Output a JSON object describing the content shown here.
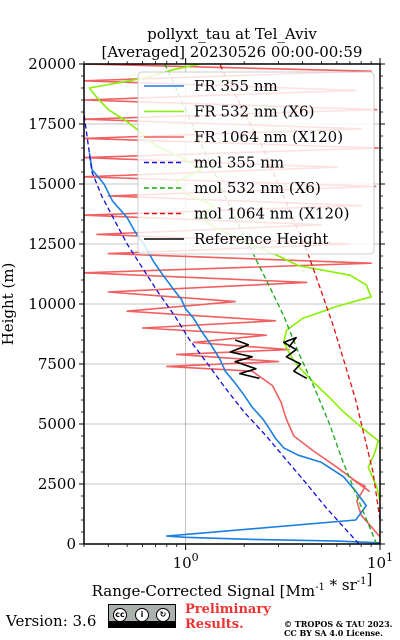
{
  "chart_data": {
    "type": "line",
    "title_line1": "pollyxt_tau at Tel_Aviv",
    "title_line2": "[Averaged] 20230526 00:00-00:59",
    "xlabel": "Range-Corrected Signal [Mm^-1 * sr^-1]",
    "ylabel": "Height (m)",
    "xscale": "log",
    "xlim": [
      0.3,
      10
    ],
    "ylim": [
      0,
      20000
    ],
    "x_ticks": [
      {
        "value": 1,
        "label": "10^0"
      },
      {
        "value": 10,
        "label": "10^1"
      }
    ],
    "y_ticks": [
      0,
      2500,
      5000,
      7500,
      10000,
      12500,
      15000,
      17500,
      20000
    ],
    "grid": true,
    "legend_position": "top-right",
    "series": [
      {
        "name": "FR 355 nm",
        "color": "#1a7fe0",
        "style": "solid",
        "points": [
          [
            10,
            50
          ],
          [
            6,
            120
          ],
          [
            2,
            200
          ],
          [
            1,
            280
          ],
          [
            0.8,
            330
          ],
          [
            7.5,
            1000
          ],
          [
            8.5,
            1600
          ],
          [
            7.5,
            2200
          ],
          [
            6.5,
            2800
          ],
          [
            5,
            3400
          ],
          [
            3.8,
            3700
          ],
          [
            3.2,
            4000
          ],
          [
            2.9,
            4400
          ],
          [
            2.7,
            4800
          ],
          [
            2.5,
            5200
          ],
          [
            2.2,
            5700
          ],
          [
            2.0,
            6200
          ],
          [
            1.8,
            6700
          ],
          [
            1.6,
            7200
          ],
          [
            1.5,
            7700
          ],
          [
            1.35,
            8300
          ],
          [
            1.2,
            8900
          ],
          [
            1.1,
            9400
          ],
          [
            1.0,
            9800
          ],
          [
            0.95,
            10200
          ],
          [
            0.85,
            10700
          ],
          [
            0.75,
            11300
          ],
          [
            0.68,
            11800
          ],
          [
            0.62,
            12400
          ],
          [
            0.55,
            13000
          ],
          [
            0.5,
            13600
          ],
          [
            0.42,
            14300
          ],
          [
            0.38,
            15000
          ],
          [
            0.33,
            15600
          ],
          [
            0.32,
            16300
          ]
        ]
      },
      {
        "name": "FR 532 nm (X6)",
        "color": "#88f000",
        "style": "solid",
        "points": [
          [
            10,
            1800
          ],
          [
            9.6,
            2400
          ],
          [
            8.7,
            3200
          ],
          [
            9.4,
            3800
          ],
          [
            9.8,
            4300
          ],
          [
            8.2,
            4800
          ],
          [
            6.5,
            5500
          ],
          [
            5.5,
            6100
          ],
          [
            4.6,
            6700
          ],
          [
            3.9,
            7300
          ],
          [
            3.5,
            7800
          ],
          [
            3.2,
            8400
          ],
          [
            3.3,
            8900
          ],
          [
            4.0,
            9400
          ],
          [
            6.0,
            9900
          ],
          [
            9.0,
            10300
          ],
          [
            8.5,
            10800
          ],
          [
            7.0,
            11200
          ],
          [
            3.8,
            11600
          ],
          [
            3.0,
            12000
          ],
          [
            2.3,
            12400
          ],
          [
            1.8,
            12800
          ],
          [
            1.4,
            13200
          ],
          [
            1.2,
            13600
          ],
          [
            1.4,
            14100
          ],
          [
            1.0,
            14600
          ],
          [
            0.9,
            15100
          ],
          [
            1.2,
            15600
          ],
          [
            0.95,
            16100
          ],
          [
            0.7,
            16600
          ],
          [
            0.6,
            17100
          ],
          [
            0.5,
            17600
          ],
          [
            0.4,
            18100
          ],
          [
            0.35,
            18600
          ],
          [
            0.32,
            19000
          ],
          [
            0.6,
            19400
          ],
          [
            0.9,
            19800
          ],
          [
            1.2,
            20000
          ]
        ]
      },
      {
        "name": "FR 1064 nm (X120)",
        "color": "#f06060",
        "style": "solid",
        "points": [
          [
            10,
            300
          ],
          [
            8.0,
            1200
          ],
          [
            7.6,
            1800
          ],
          [
            8.4,
            2400
          ],
          [
            7.2,
            2700
          ],
          [
            8.8,
            2200
          ],
          [
            6.0,
            3200
          ],
          [
            4.5,
            3900
          ],
          [
            3.6,
            4500
          ],
          [
            3.3,
            5200
          ],
          [
            3.1,
            5900
          ],
          [
            2.8,
            6600
          ],
          [
            2.2,
            7200
          ],
          [
            0.8,
            7400
          ],
          [
            3.0,
            7600
          ],
          [
            0.9,
            7900
          ],
          [
            3.4,
            8100
          ],
          [
            1.1,
            8400
          ],
          [
            2.6,
            8700
          ],
          [
            0.6,
            9000
          ],
          [
            2.9,
            9300
          ],
          [
            0.5,
            9700
          ],
          [
            1.8,
            10100
          ],
          [
            0.4,
            10500
          ],
          [
            4.2,
            10900
          ],
          [
            0.3,
            11300
          ],
          [
            9.0,
            11700
          ],
          [
            0.4,
            12100
          ],
          [
            7.0,
            12500
          ],
          [
            0.35,
            12900
          ],
          [
            5.0,
            13300
          ],
          [
            0.3,
            13700
          ],
          [
            8.0,
            14100
          ],
          [
            0.4,
            14500
          ],
          [
            9.5,
            14900
          ],
          [
            0.3,
            15300
          ],
          [
            6.0,
            15700
          ],
          [
            0.3,
            16100
          ],
          [
            9.8,
            16500
          ],
          [
            0.3,
            16900
          ],
          [
            8.0,
            17300
          ],
          [
            0.3,
            17700
          ],
          [
            9.6,
            18100
          ],
          [
            0.3,
            18500
          ],
          [
            7.5,
            18900
          ],
          [
            0.3,
            19300
          ],
          [
            9.0,
            19700
          ],
          [
            0.3,
            20000
          ]
        ]
      },
      {
        "name": "mol 355 nm",
        "color": "#1010d8",
        "style": "dashed",
        "points": [
          [
            7.8,
            0
          ],
          [
            5.3,
            1500
          ],
          [
            4.2,
            2500
          ],
          [
            3.3,
            3500
          ],
          [
            2.6,
            4500
          ],
          [
            2.0,
            5500
          ],
          [
            1.6,
            6500
          ],
          [
            1.3,
            7500
          ],
          [
            1.05,
            8500
          ],
          [
            0.88,
            9500
          ],
          [
            0.72,
            10500
          ],
          [
            0.6,
            11500
          ],
          [
            0.5,
            12500
          ],
          [
            0.43,
            13500
          ],
          [
            0.37,
            14500
          ],
          [
            0.33,
            15500
          ],
          [
            0.3,
            17900
          ]
        ]
      },
      {
        "name": "mol 532 nm (X6)",
        "color": "#18a818",
        "style": "dashed",
        "points": [
          [
            9.6,
            0
          ],
          [
            7.6,
            2000
          ],
          [
            6.4,
            3500
          ],
          [
            5.5,
            5000
          ],
          [
            4.6,
            6500
          ],
          [
            3.8,
            8000
          ],
          [
            3.2,
            9500
          ],
          [
            2.6,
            11000
          ],
          [
            2.1,
            12500
          ],
          [
            1.7,
            14000
          ],
          [
            1.4,
            15500
          ],
          [
            1.15,
            17000
          ],
          [
            0.95,
            18500
          ],
          [
            0.78,
            20000
          ]
        ]
      },
      {
        "name": "mol 1064 nm (X120)",
        "color": "#e01010",
        "style": "dashed",
        "points": [
          [
            10,
            1000
          ],
          [
            9.2,
            3000
          ],
          [
            8.3,
            4500
          ],
          [
            7.5,
            6000
          ],
          [
            6.6,
            7500
          ],
          [
            5.8,
            9000
          ],
          [
            5.0,
            10500
          ],
          [
            4.3,
            12000
          ],
          [
            3.6,
            13500
          ],
          [
            3.0,
            15000
          ],
          [
            2.5,
            16500
          ],
          [
            2.0,
            18000
          ],
          [
            1.6,
            19500
          ],
          [
            1.5,
            20000
          ]
        ]
      },
      {
        "name": "Reference Height",
        "color": "#000000",
        "style": "solid",
        "segments": [
          [
            [
              2.4,
              6900
            ],
            [
              1.9,
              7100
            ],
            [
              2.3,
              7300
            ],
            [
              1.8,
              7600
            ],
            [
              2.2,
              7800
            ],
            [
              1.7,
              8000
            ],
            [
              2.1,
              8300
            ],
            [
              1.8,
              8500
            ]
          ],
          [
            [
              4.2,
              6900
            ],
            [
              3.6,
              7200
            ],
            [
              3.9,
              7500
            ],
            [
              3.3,
              7800
            ],
            [
              3.7,
              8100
            ],
            [
              3.2,
              8400
            ],
            [
              3.7,
              8600
            ],
            [
              3.4,
              8200
            ]
          ]
        ]
      }
    ]
  },
  "footer": {
    "version": "Version: 3.6",
    "cc_badge_icon": "cc-by-sa-icon",
    "cc_badge_text": "BY SA",
    "preliminary_line1": "Preliminary",
    "preliminary_line2": "Results.",
    "copyright_line1": "© TROPOS & TAU 2023.",
    "copyright_line2": "CC BY SA 4.0 License."
  }
}
